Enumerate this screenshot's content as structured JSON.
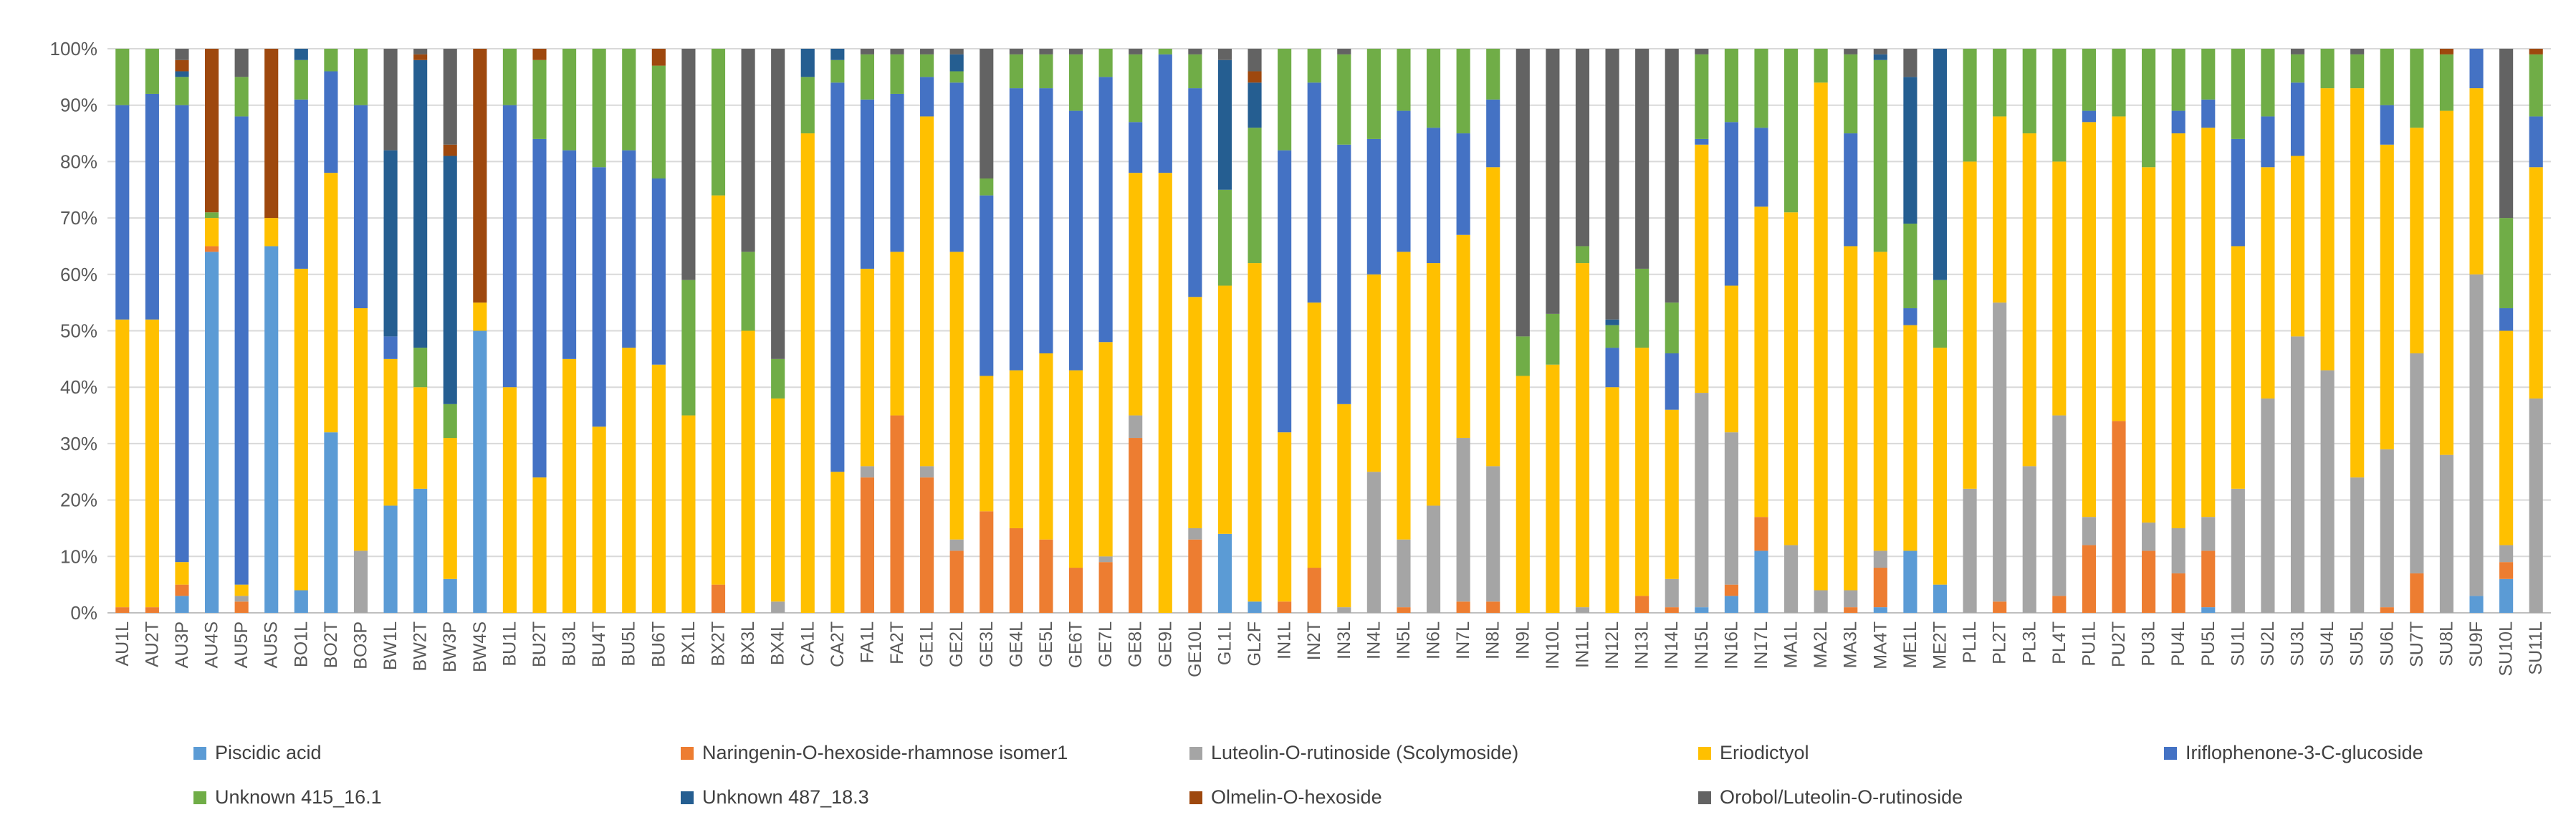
{
  "chart_data": {
    "type": "bar",
    "stacked": true,
    "normalized": true,
    "title": "",
    "xlabel": "",
    "ylabel": "",
    "ylim": [
      0,
      100
    ],
    "ytick_labels": [
      "0%",
      "10%",
      "20%",
      "30%",
      "40%",
      "50%",
      "60%",
      "70%",
      "80%",
      "90%",
      "100%"
    ],
    "grid": true,
    "legend_position": "bottom",
    "colors": [
      "#5b9bd5",
      "#ed7d31",
      "#a5a5a5",
      "#ffc000",
      "#4472c4",
      "#70ad47",
      "#255e91",
      "#9e480e",
      "#636363"
    ],
    "series_names": [
      "Piscidic acid",
      "Naringenin-O-hexoside-rhamnose isomer1",
      "Luteolin-O-rutinoside (Scolymoside)",
      "Eriodictyol",
      "Iriflophenone-3-C-glucoside",
      "Unknown  415_16.1",
      "Unknown  487_18.3",
      "Olmelin-O-hexoside",
      "Orobol/Luteolin-O-rutinoside"
    ],
    "categories": [
      "AU1L",
      "AU2T",
      "AU3P",
      "AU4S",
      "AU5P",
      "AU5S",
      "BO1L",
      "BO2T",
      "BO3P",
      "BW1L",
      "BW2T",
      "BW3P",
      "BW4S",
      "BU1L",
      "BU2T",
      "BU3L",
      "BU4T",
      "BU5L",
      "BU6T",
      "BX1L",
      "BX2T",
      "BX3L",
      "BX4L",
      "CA1L",
      "CA2T",
      "FA1L",
      "FA2T",
      "GE1L",
      "GE2L",
      "GE3L",
      "GE4L",
      "GE5L",
      "GE6T",
      "GE7L",
      "GE8L",
      "GE9L",
      "GE10L",
      "GL1L",
      "GL2F",
      "IN1L",
      "IN2T",
      "IN3L",
      "IN4L",
      "IN5L",
      "IN6L",
      "IN7L",
      "IN8L",
      "IN9L",
      "IN10L",
      "IN11L",
      "IN12L",
      "IN13L",
      "IN14L",
      "IN15L",
      "IN16L",
      "IN17L",
      "MA1L",
      "MA2L",
      "MA3L",
      "MA4T",
      "ME1L",
      "ME2T",
      "PL1L",
      "PL2T",
      "PL3L",
      "PL4T",
      "PU1L",
      "PU2T",
      "PU3L",
      "PU4L",
      "PU5L",
      "SU1L",
      "SU2L",
      "SU3L",
      "SU4L",
      "SU5L",
      "SU6L",
      "SU7T",
      "SU8L",
      "SU9F",
      "SU10L",
      "SU11L"
    ],
    "stacks": [
      [
        0,
        1,
        0,
        51,
        38,
        10,
        0,
        0,
        0
      ],
      [
        0,
        1,
        0,
        51,
        40,
        8,
        0,
        0,
        0
      ],
      [
        3,
        2,
        0,
        4,
        81,
        5,
        1,
        2,
        2
      ],
      [
        64,
        1,
        0,
        5,
        0,
        1,
        0,
        29,
        0
      ],
      [
        0,
        2,
        1,
        2,
        83,
        7,
        0,
        0,
        5
      ],
      [
        65,
        0,
        0,
        5,
        0,
        0,
        0,
        30,
        0
      ],
      [
        4,
        0,
        0,
        57,
        30,
        7,
        2,
        0,
        0
      ],
      [
        32,
        0,
        0,
        46,
        18,
        4,
        0,
        0,
        0
      ],
      [
        0,
        0,
        11,
        43,
        36,
        10,
        0,
        0,
        0
      ],
      [
        19,
        0,
        0,
        26,
        4,
        0,
        33,
        0,
        18
      ],
      [
        22,
        0,
        0,
        18,
        0,
        7,
        51,
        1,
        1
      ],
      [
        6,
        0,
        0,
        25,
        0,
        6,
        44,
        2,
        17
      ],
      [
        50,
        0,
        0,
        5,
        0,
        0,
        0,
        45,
        0
      ],
      [
        0,
        0,
        0,
        40,
        50,
        10,
        0,
        0,
        0
      ],
      [
        0,
        0,
        0,
        24,
        60,
        14,
        0,
        2,
        0
      ],
      [
        0,
        0,
        0,
        45,
        37,
        18,
        0,
        0,
        0
      ],
      [
        0,
        0,
        0,
        33,
        46,
        21,
        0,
        0,
        0
      ],
      [
        0,
        0,
        0,
        47,
        35,
        18,
        0,
        0,
        0
      ],
      [
        0,
        0,
        0,
        44,
        33,
        20,
        0,
        3,
        0
      ],
      [
        0,
        0,
        0,
        35,
        0,
        24,
        0,
        0,
        41
      ],
      [
        0,
        5,
        0,
        69,
        0,
        26,
        0,
        0,
        0
      ],
      [
        0,
        0,
        0,
        50,
        0,
        14,
        0,
        0,
        36
      ],
      [
        0,
        0,
        2,
        36,
        0,
        7,
        0,
        0,
        55
      ],
      [
        0,
        0,
        0,
        85,
        0,
        10,
        5,
        0,
        0
      ],
      [
        0,
        0,
        0,
        25,
        69,
        4,
        2,
        0,
        0
      ],
      [
        0,
        24,
        2,
        35,
        30,
        8,
        0,
        0,
        1
      ],
      [
        0,
        35,
        0,
        29,
        28,
        7,
        0,
        0,
        1
      ],
      [
        0,
        24,
        2,
        62,
        7,
        4,
        0,
        0,
        1
      ],
      [
        0,
        11,
        2,
        51,
        30,
        2,
        3,
        0,
        1
      ],
      [
        0,
        18,
        0,
        24,
        32,
        3,
        0,
        0,
        23
      ],
      [
        0,
        15,
        0,
        28,
        50,
        6,
        0,
        0,
        1
      ],
      [
        0,
        13,
        0,
        33,
        47,
        6,
        0,
        0,
        1
      ],
      [
        0,
        8,
        0,
        35,
        46,
        10,
        0,
        0,
        1
      ],
      [
        0,
        9,
        1,
        38,
        47,
        5,
        0,
        0,
        0
      ],
      [
        0,
        31,
        4,
        43,
        9,
        12,
        0,
        0,
        1
      ],
      [
        0,
        0,
        0,
        78,
        21,
        1,
        0,
        0,
        0
      ],
      [
        0,
        13,
        2,
        41,
        37,
        6,
        0,
        0,
        1
      ],
      [
        14,
        0,
        0,
        44,
        0,
        17,
        23,
        0,
        2
      ],
      [
        2,
        0,
        0,
        60,
        0,
        24,
        8,
        2,
        4
      ],
      [
        0,
        2,
        0,
        30,
        50,
        18,
        0,
        0,
        0
      ],
      [
        0,
        8,
        0,
        47,
        39,
        6,
        0,
        0,
        0
      ],
      [
        0,
        0,
        1,
        36,
        46,
        16,
        0,
        0,
        1
      ],
      [
        0,
        0,
        25,
        35,
        24,
        16,
        0,
        0,
        0
      ],
      [
        0,
        1,
        12,
        51,
        25,
        11,
        0,
        0,
        0
      ],
      [
        0,
        0,
        19,
        43,
        24,
        14,
        0,
        0,
        0
      ],
      [
        0,
        2,
        29,
        36,
        18,
        15,
        0,
        0,
        0
      ],
      [
        0,
        2,
        24,
        53,
        12,
        9,
        0,
        0,
        0
      ],
      [
        0,
        0,
        0,
        42,
        0,
        7,
        0,
        0,
        51
      ],
      [
        0,
        0,
        0,
        44,
        0,
        9,
        0,
        0,
        47
      ],
      [
        0,
        0,
        1,
        61,
        0,
        3,
        0,
        0,
        35
      ],
      [
        0,
        0,
        0,
        40,
        7,
        4,
        1,
        0,
        48
      ],
      [
        0,
        3,
        0,
        44,
        0,
        14,
        0,
        0,
        39
      ],
      [
        0,
        1,
        5,
        30,
        10,
        9,
        0,
        0,
        45
      ],
      [
        1,
        0,
        38,
        44,
        1,
        15,
        0,
        0,
        1
      ],
      [
        3,
        2,
        27,
        26,
        29,
        13,
        0,
        0,
        0
      ],
      [
        11,
        6,
        0,
        55,
        14,
        14,
        0,
        0,
        0
      ],
      [
        0,
        0,
        12,
        59,
        0,
        29,
        0,
        0,
        0
      ],
      [
        0,
        0,
        4,
        90,
        0,
        6,
        0,
        0,
        0
      ],
      [
        0,
        1,
        3,
        61,
        20,
        14,
        0,
        0,
        1
      ],
      [
        1,
        7,
        3,
        53,
        0,
        34,
        1,
        0,
        1
      ],
      [
        11,
        0,
        0,
        40,
        3,
        15,
        26,
        0,
        5
      ],
      [
        5,
        0,
        0,
        42,
        0,
        12,
        41,
        0,
        0
      ],
      [
        0,
        0,
        22,
        58,
        0,
        20,
        0,
        0,
        0
      ],
      [
        0,
        2,
        53,
        33,
        0,
        12,
        0,
        0,
        0
      ],
      [
        0,
        0,
        26,
        59,
        0,
        15,
        0,
        0,
        0
      ],
      [
        0,
        3,
        32,
        45,
        0,
        20,
        0,
        0,
        0
      ],
      [
        0,
        12,
        5,
        70,
        2,
        11,
        0,
        0,
        0
      ],
      [
        0,
        34,
        0,
        54,
        0,
        12,
        0,
        0,
        0
      ],
      [
        0,
        11,
        5,
        63,
        0,
        21,
        0,
        0,
        0
      ],
      [
        0,
        7,
        8,
        70,
        4,
        11,
        0,
        0,
        0
      ],
      [
        1,
        10,
        6,
        69,
        5,
        9,
        0,
        0,
        0
      ],
      [
        0,
        0,
        22,
        43,
        19,
        16,
        0,
        0,
        0
      ],
      [
        0,
        0,
        38,
        41,
        9,
        12,
        0,
        0,
        0
      ],
      [
        0,
        0,
        49,
        32,
        13,
        5,
        0,
        0,
        1
      ],
      [
        0,
        0,
        43,
        50,
        0,
        7,
        0,
        0,
        0
      ],
      [
        0,
        0,
        24,
        69,
        0,
        6,
        0,
        0,
        1
      ],
      [
        0,
        1,
        28,
        54,
        7,
        10,
        0,
        0,
        0
      ],
      [
        0,
        7,
        39,
        40,
        0,
        14,
        0,
        0,
        0
      ],
      [
        0,
        0,
        28,
        61,
        0,
        10,
        0,
        1,
        0
      ],
      [
        3,
        0,
        57,
        33,
        7,
        0,
        0,
        0,
        0
      ],
      [
        6,
        3,
        3,
        38,
        4,
        16,
        0,
        0,
        30
      ],
      [
        0,
        0,
        38,
        41,
        9,
        11,
        0,
        1,
        0
      ]
    ]
  }
}
